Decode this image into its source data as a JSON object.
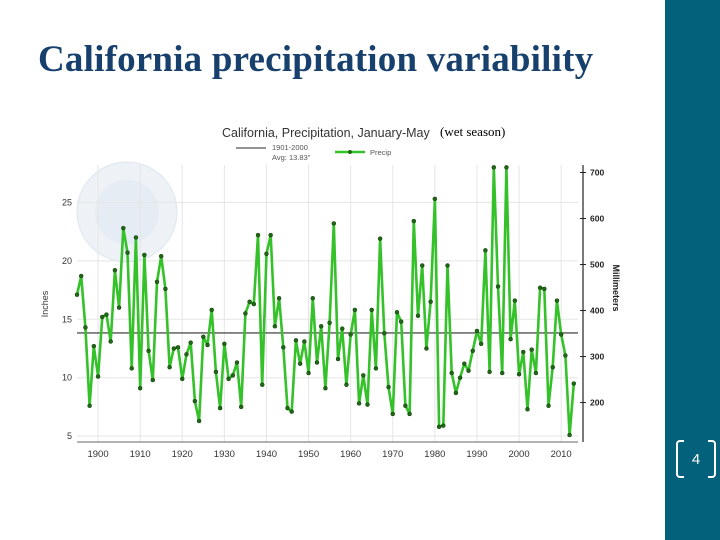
{
  "slide": {
    "title": "California precipitation variability",
    "page_number": "4",
    "annotation": "(wet season)",
    "colors": {
      "title": "#17406d",
      "sidebar": "#04617b",
      "line": "#35c12a",
      "avg": "#555555"
    }
  },
  "chart_data": {
    "type": "line",
    "title": "California, Precipitation, January-May",
    "xlabel": "",
    "ylabel": "Inches",
    "y2label": "Millimeters",
    "xlim": [
      1895,
      2014
    ],
    "ylim": [
      4.5,
      28.2
    ],
    "xticks": [
      1900,
      1910,
      1920,
      1930,
      1940,
      1950,
      1960,
      1970,
      1980,
      1990,
      2000,
      2010
    ],
    "yticks": [
      5,
      10,
      15,
      20,
      25
    ],
    "y2ticks": [
      200,
      300,
      400,
      500,
      600,
      700
    ],
    "legend": [
      {
        "name": "1901-2000",
        "sub": "Avg: 13.83\""
      },
      {
        "name": "Precip"
      }
    ],
    "average": {
      "label": "1901-2000",
      "value": 13.83
    },
    "series": [
      {
        "name": "Precip",
        "x": [
          1895,
          1896,
          1897,
          1898,
          1899,
          1900,
          1901,
          1902,
          1903,
          1904,
          1905,
          1906,
          1907,
          1908,
          1909,
          1910,
          1911,
          1912,
          1913,
          1914,
          1915,
          1916,
          1917,
          1918,
          1919,
          1920,
          1921,
          1922,
          1923,
          1924,
          1925,
          1926,
          1927,
          1928,
          1929,
          1930,
          1931,
          1932,
          1933,
          1934,
          1935,
          1936,
          1937,
          1938,
          1939,
          1940,
          1941,
          1942,
          1943,
          1944,
          1945,
          1946,
          1947,
          1948,
          1949,
          1950,
          1951,
          1952,
          1953,
          1954,
          1955,
          1956,
          1957,
          1958,
          1959,
          1960,
          1961,
          1962,
          1963,
          1964,
          1965,
          1966,
          1967,
          1968,
          1969,
          1970,
          1971,
          1972,
          1973,
          1974,
          1975,
          1976,
          1977,
          1978,
          1979,
          1980,
          1981,
          1982,
          1983,
          1984,
          1985,
          1986,
          1987,
          1988,
          1989,
          1990,
          1991,
          1992,
          1993,
          1994,
          1995,
          1996,
          1997,
          1998,
          1999,
          2000,
          2001,
          2002,
          2003,
          2004,
          2005,
          2006,
          2007,
          2008,
          2009,
          2010,
          2011,
          2012,
          2013
        ],
        "values": [
          17.1,
          18.7,
          14.3,
          7.6,
          12.7,
          10.1,
          15.2,
          15.4,
          13.1,
          19.2,
          16.0,
          22.8,
          20.7,
          10.8,
          22.0,
          9.1,
          20.5,
          12.3,
          9.8,
          18.2,
          20.4,
          17.6,
          10.9,
          12.5,
          12.6,
          9.9,
          12.0,
          13.0,
          8.0,
          6.3,
          13.5,
          12.8,
          15.8,
          10.5,
          7.4,
          12.9,
          9.9,
          10.2,
          11.3,
          7.5,
          15.5,
          16.5,
          16.3,
          22.2,
          9.4,
          20.6,
          22.2,
          14.4,
          16.8,
          12.6,
          7.4,
          7.1,
          13.2,
          11.2,
          13.1,
          10.4,
          16.8,
          11.3,
          14.4,
          9.1,
          14.7,
          23.2,
          11.6,
          14.2,
          9.4,
          13.7,
          15.8,
          7.8,
          10.2,
          7.7,
          15.8,
          10.8,
          21.9,
          13.8,
          9.2,
          6.9,
          15.6,
          14.8,
          7.6,
          6.9,
          23.4,
          15.3,
          19.6,
          12.5,
          16.5,
          25.3,
          5.8,
          5.9,
          19.6,
          10.4,
          8.7,
          10.0,
          11.2,
          10.6,
          12.3,
          14.0,
          12.9,
          20.9,
          10.5,
          28.0,
          17.8,
          10.4,
          28.0,
          13.3,
          16.6,
          10.3,
          12.2,
          7.3,
          12.4,
          10.4,
          17.7,
          17.6,
          7.6,
          10.9,
          16.6,
          13.7,
          11.9,
          5.1,
          9.5
        ]
      }
    ]
  }
}
